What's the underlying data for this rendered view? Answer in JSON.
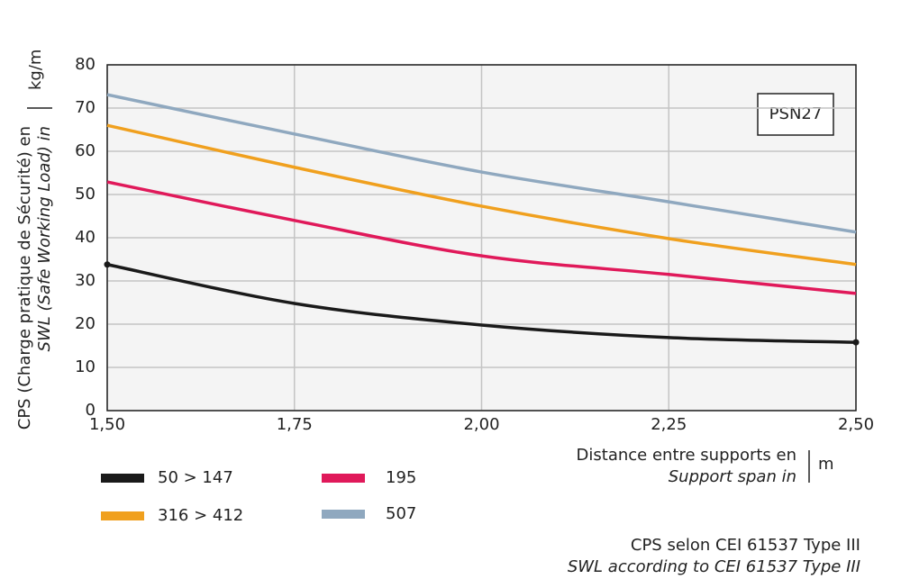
{
  "chart_data": {
    "type": "line",
    "y_label": "CPS (Charge pratique de Sécurité) en",
    "y_label_en": "SWL (Safe Working Load) in",
    "y_unit": "kg/m",
    "x_label": "Distance entre supports en",
    "x_label_en": "Support span in",
    "x_unit": "m",
    "annotation": "PSN27",
    "footnote": "CPS selon CEI 61537 Type III",
    "footnote_en": "SWL according to CEI 61537 Type III",
    "x": [
      1.5,
      1.75,
      2.0,
      2.25,
      2.5
    ],
    "series": [
      {
        "name": "50 > 147",
        "color": "#1a1a1a",
        "values": [
          33.8,
          24.8,
          19.8,
          16.9,
          15.8
        ]
      },
      {
        "name": "195",
        "color": "#e0195a",
        "values": [
          52.9,
          44.0,
          35.8,
          31.5,
          27.1
        ]
      },
      {
        "name": "316 > 412",
        "color": "#f0a01e",
        "values": [
          66.0,
          56.3,
          47.3,
          39.8,
          33.8
        ]
      },
      {
        "name": "507",
        "color": "#8fa8bf",
        "values": [
          73.1,
          64.0,
          55.2,
          48.3,
          41.3
        ]
      }
    ],
    "xlim": [
      1.5,
      2.5
    ],
    "xticks": [
      {
        "value": 1.5,
        "label": "1,50"
      },
      {
        "value": 1.75,
        "label": "1,75"
      },
      {
        "value": 2.0,
        "label": "2,00"
      },
      {
        "value": 2.25,
        "label": "2,25"
      },
      {
        "value": 2.5,
        "label": "2,50"
      }
    ],
    "ylim": [
      0,
      80
    ],
    "yticks": [
      0,
      10,
      20,
      30,
      40,
      50,
      60,
      70,
      80
    ],
    "grid": true,
    "legend": "bottom"
  }
}
